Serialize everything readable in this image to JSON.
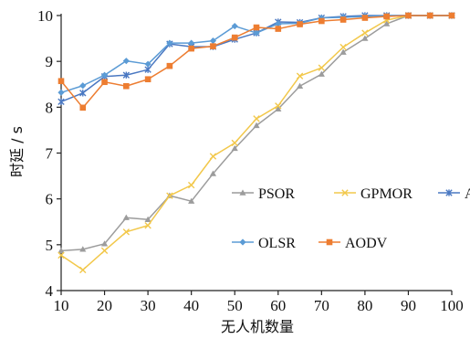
{
  "chart_data": {
    "type": "line",
    "title": "",
    "xlabel": "无人机数量",
    "ylabel": "时延 / s",
    "xlim": [
      10,
      100
    ],
    "ylim": [
      4,
      10
    ],
    "x_ticks": [
      10,
      20,
      30,
      40,
      50,
      60,
      70,
      80,
      90,
      100
    ],
    "y_ticks": [
      4,
      5,
      6,
      7,
      8,
      9,
      10
    ],
    "grid": false,
    "legend_position": "inside-right",
    "x": [
      10,
      15,
      20,
      25,
      30,
      35,
      40,
      45,
      50,
      55,
      60,
      65,
      70,
      75,
      80,
      85,
      90,
      95,
      100
    ],
    "series": [
      {
        "name": "PSOR",
        "color": "#9c9c9c",
        "marker": "triangle",
        "values": [
          4.87,
          4.9,
          5.02,
          5.59,
          5.55,
          6.07,
          5.95,
          6.55,
          7.1,
          7.6,
          7.96,
          8.46,
          8.72,
          9.2,
          9.5,
          9.82,
          10.0,
          10.0,
          10.0
        ]
      },
      {
        "name": "GPMOR",
        "color": "#f2c84b",
        "marker": "x",
        "values": [
          4.77,
          4.45,
          4.87,
          5.28,
          5.42,
          6.07,
          6.3,
          6.93,
          7.22,
          7.75,
          8.03,
          8.68,
          8.86,
          9.31,
          9.62,
          9.9,
          10.0,
          10.0,
          10.0
        ]
      },
      {
        "name": "AFP",
        "color": "#4a78c2",
        "marker": "star",
        "values": [
          8.12,
          8.31,
          8.67,
          8.7,
          8.82,
          9.38,
          9.32,
          9.32,
          9.48,
          9.62,
          9.86,
          9.85,
          9.95,
          9.98,
          10.0,
          10.0,
          10.0,
          10.0,
          10.0
        ]
      },
      {
        "name": "OLSR",
        "color": "#5b9bd5",
        "marker": "diamond",
        "values": [
          8.32,
          8.47,
          8.7,
          9.01,
          8.94,
          9.4,
          9.4,
          9.45,
          9.77,
          9.62,
          9.82,
          9.83,
          9.95,
          9.96,
          9.98,
          10.0,
          10.0,
          10.0,
          10.0
        ]
      },
      {
        "name": "AODV",
        "color": "#ed7d31",
        "marker": "square",
        "values": [
          8.57,
          7.99,
          8.55,
          8.46,
          8.61,
          8.9,
          9.28,
          9.33,
          9.52,
          9.74,
          9.71,
          9.81,
          9.88,
          9.91,
          9.95,
          9.98,
          10.0,
          10.0,
          10.0
        ]
      }
    ]
  }
}
